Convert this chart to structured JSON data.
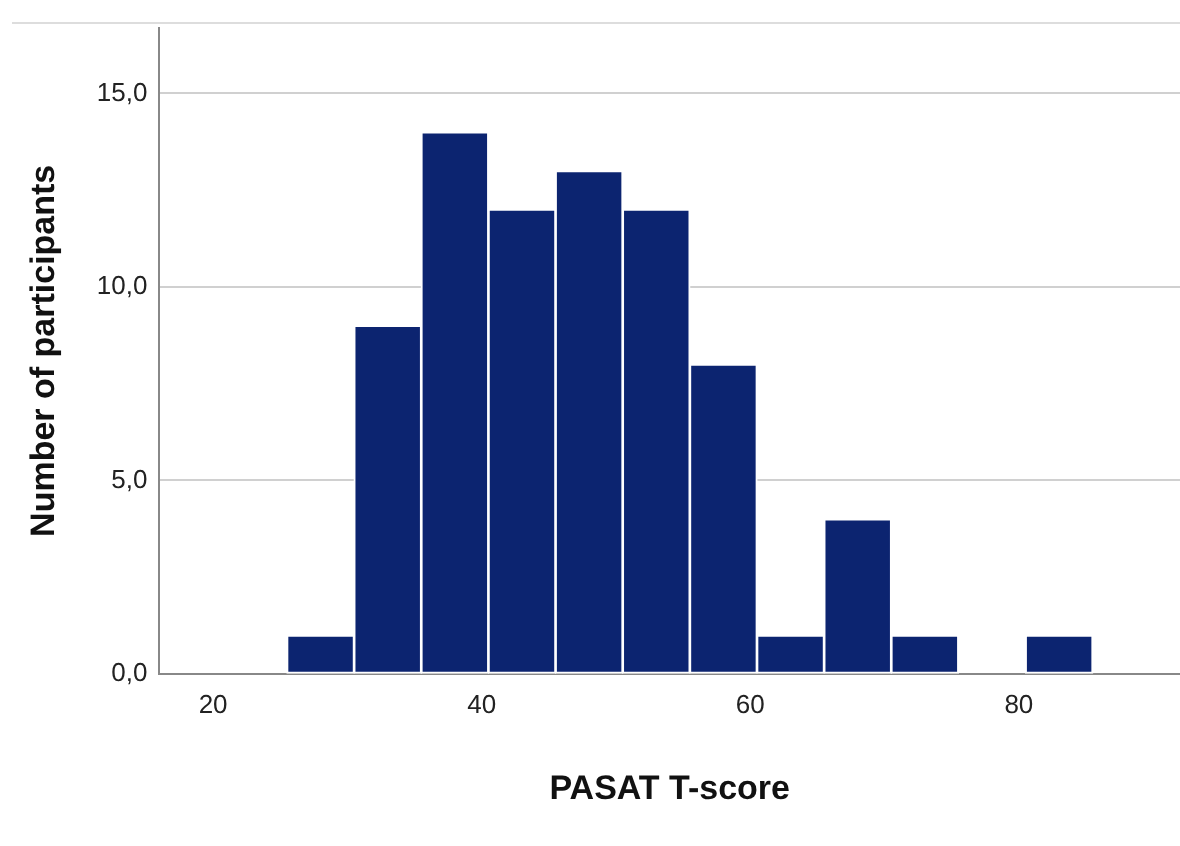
{
  "chart_data": {
    "type": "histogram",
    "xlabel": "PASAT T-score",
    "ylabel": "Number of participants",
    "bins": [
      25.5,
      30.5,
      35.5,
      40.5,
      45.5,
      50.5,
      55.5,
      60.5,
      65.5,
      70.5,
      75.5,
      80.5,
      85.5
    ],
    "values": [
      1,
      9,
      14,
      12,
      13,
      12,
      8,
      1,
      4,
      1,
      0,
      1
    ],
    "color": "#0c2470",
    "xlim": [
      16,
      92
    ],
    "xticks": [
      20,
      40,
      60,
      80
    ],
    "ylim": [
      0,
      16.7
    ],
    "yticks": [
      {
        "value": 0,
        "label": "0,0"
      },
      {
        "value": 5,
        "label": "5,0"
      },
      {
        "value": 10,
        "label": "10,0"
      },
      {
        "value": 15,
        "label": "15,0"
      }
    ],
    "grid": "y",
    "legend": false
  }
}
